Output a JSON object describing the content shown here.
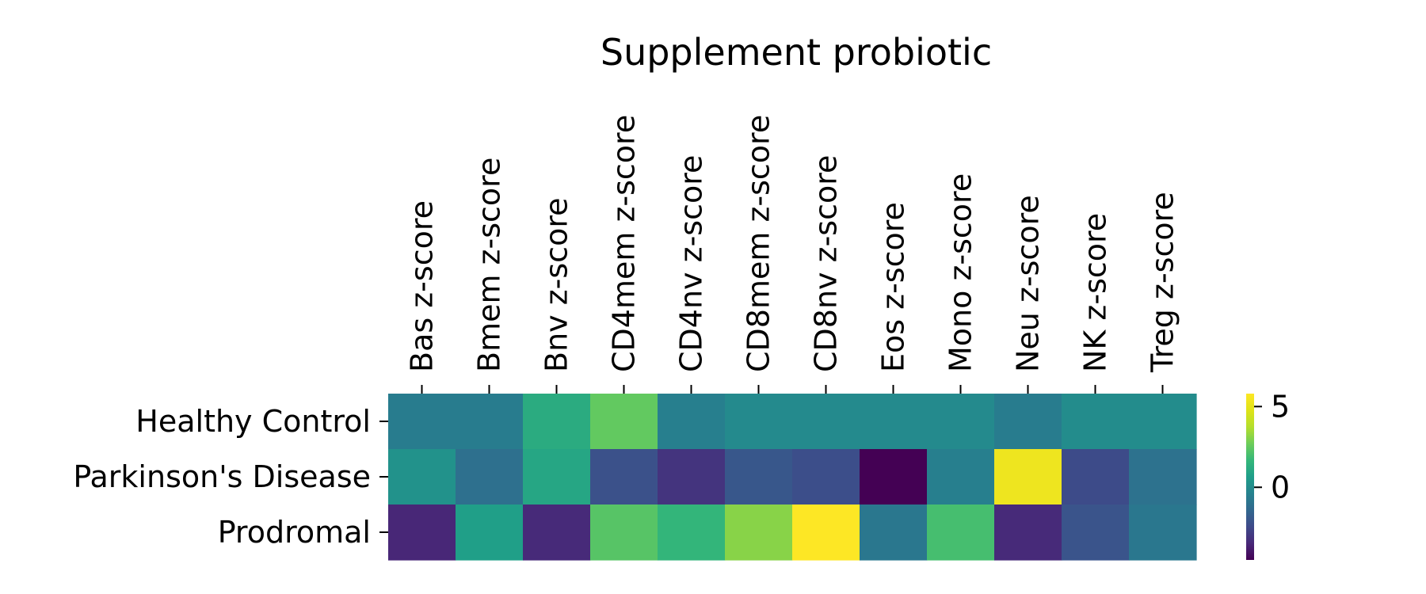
{
  "chart_data": {
    "type": "heatmap",
    "title": "Supplement probiotic",
    "xlabel": "",
    "ylabel": "",
    "x_categories": [
      "Bas z-score",
      "Bmem z-score",
      "Bnv z-score",
      "CD4mem z-score",
      "CD4nv z-score",
      "CD8mem z-score",
      "CD8nv z-score",
      "Eos z-score",
      "Mono z-score",
      "Neu z-score",
      "NK z-score",
      "Treg z-score"
    ],
    "y_categories": [
      "Healthy Control",
      "Parkinson's Disease",
      "Prodromal"
    ],
    "values": [
      [
        -0.6,
        -0.6,
        1.2,
        2.5,
        -0.5,
        -0.1,
        -0.1,
        -0.1,
        -0.1,
        -0.6,
        0.0,
        0.0
      ],
      [
        0.2,
        -1.1,
        1.0,
        -2.2,
        -3.1,
        -2.0,
        -2.3,
        -4.5,
        -0.5,
        5.3,
        -2.4,
        -1.0
      ],
      [
        -3.5,
        0.7,
        -3.4,
        2.3,
        1.6,
        3.1,
        5.8,
        -0.8,
        2.0,
        -3.4,
        -2.1,
        -0.8
      ]
    ],
    "colormap": "viridis",
    "colorbar": {
      "range": [
        -4.5,
        5.8
      ],
      "ticks": [
        0,
        5
      ],
      "tick_labels": [
        "0",
        "5"
      ]
    },
    "x_tick_position": "top",
    "legend": "right"
  }
}
